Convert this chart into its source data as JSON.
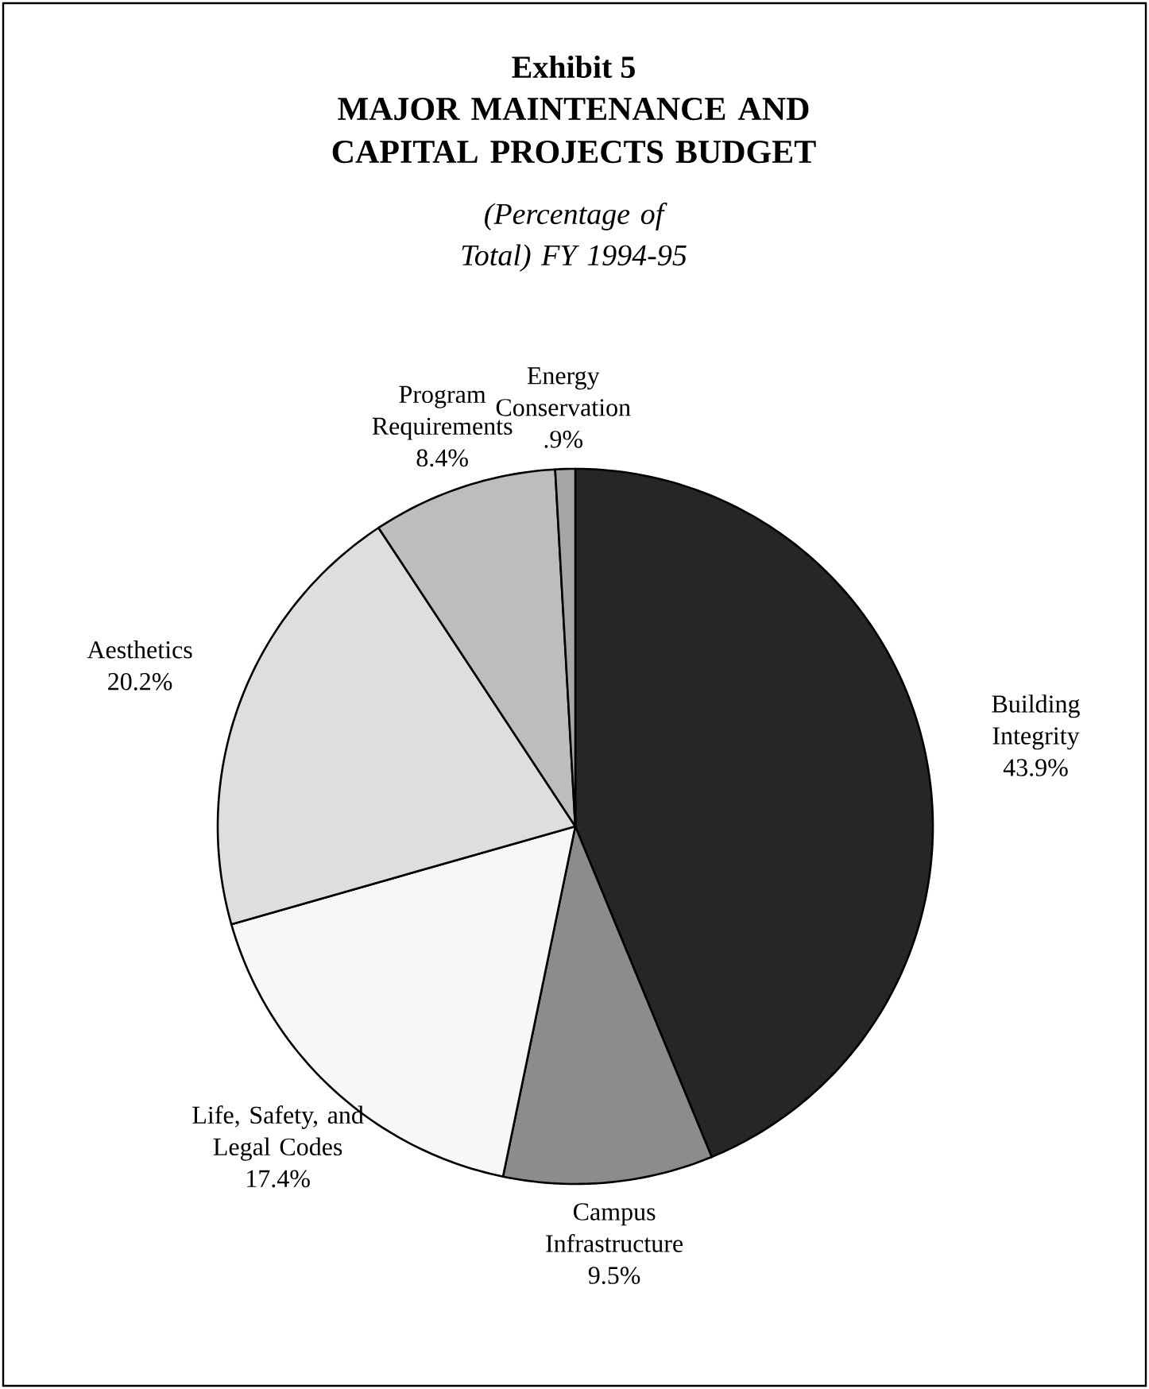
{
  "chart_data": {
    "type": "pie",
    "title": "MAJOR MAINTENANCE AND CAPITAL PROJECTS BUDGET",
    "subtitle": "(Percentage of Total) FY 1994-95",
    "annotations": [
      "Exhibit 5"
    ],
    "categories": [
      "Building Integrity",
      "Campus Infrastructure",
      "Life, Safety, and Legal Codes",
      "Aesthetics",
      "Program Requirements",
      "Energy Conservation"
    ],
    "values": [
      43.9,
      9.5,
      17.4,
      20.2,
      8.4,
      0.9
    ],
    "value_labels": [
      "43.9%",
      "9.5%",
      "17.4%",
      "20.2%",
      "8.4%",
      ".9%"
    ],
    "colors": [
      "#262626",
      "#8c8c8c",
      "#f7f7f7",
      "#dedede",
      "#bdbdbd",
      "#a6a6a6"
    ]
  }
}
